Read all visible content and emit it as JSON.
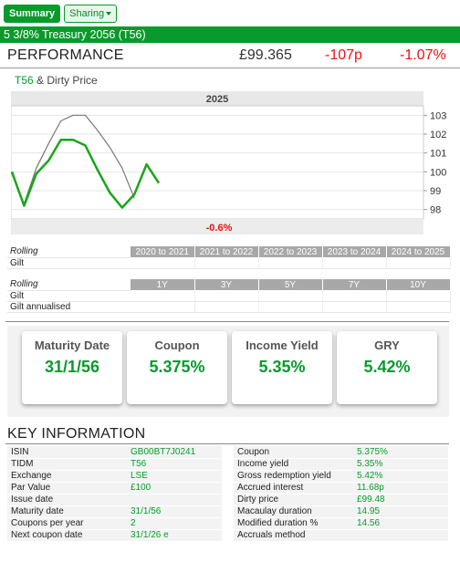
{
  "tabs": {
    "summary": "Summary",
    "sharing": "Sharing"
  },
  "title": "5 3/8% Treasury 2056 (T56)",
  "performance": {
    "label": "PERFORMANCE",
    "price": "£99.365",
    "change": "-107p",
    "change_pct": "-1.07%"
  },
  "chart_title": {
    "tidm": "T56",
    "rest": " & Dirty Price"
  },
  "chart_data": {
    "type": "line",
    "title": "2025",
    "footer_label": "-0.6%",
    "y_ticks": [
      "103",
      "102",
      "101",
      "100",
      "99",
      "98"
    ],
    "ylim": [
      97.5,
      103.5
    ],
    "grid": true,
    "series": [
      {
        "name": "T56",
        "color": "#1aa51a",
        "values": [
          100.0,
          98.2,
          99.9,
          100.6,
          101.7,
          101.7,
          101.4,
          100.1,
          98.9,
          98.1,
          98.8,
          100.4,
          99.4
        ]
      },
      {
        "name": "Dirty Price",
        "color": "#777777",
        "values": [
          100.0,
          98.3,
          100.2,
          101.5,
          102.7,
          103.0,
          103.0,
          102.2,
          101.3,
          100.2,
          98.6,
          null,
          null
        ]
      }
    ]
  },
  "rolling1": {
    "label": "Rolling",
    "headers": [
      "2020 to 2021",
      "2021 to 2022",
      "2022 to 2023",
      "2023 to 2024",
      "2024 to 2025"
    ],
    "rows": [
      {
        "label": "Gilt"
      }
    ]
  },
  "rolling2": {
    "label": "Rolling",
    "headers": [
      "1Y",
      "3Y",
      "5Y",
      "7Y",
      "10Y"
    ],
    "rows": [
      {
        "label": "Gilt"
      },
      {
        "label": "Gilt annualised"
      }
    ]
  },
  "cards": [
    {
      "label": "Maturity Date",
      "value": "31/1/56"
    },
    {
      "label": "Coupon",
      "value": "5.375%"
    },
    {
      "label": "Income Yield",
      "value": "5.35%"
    },
    {
      "label": "GRY",
      "value": "5.42%"
    }
  ],
  "key_info": {
    "title": "KEY INFORMATION",
    "left": [
      {
        "k": "ISIN",
        "v": "GB00BT7J0241"
      },
      {
        "k": "TIDM",
        "v": "T56"
      },
      {
        "k": "Exchange",
        "v": "LSE"
      },
      {
        "k": "Par Value",
        "v": "£100"
      },
      {
        "k": "Issue date",
        "v": ""
      },
      {
        "k": "Maturity date",
        "v": "31/1/56"
      },
      {
        "k": "Coupons per year",
        "v": "2"
      },
      {
        "k": "Next coupon date",
        "v": "31/1/26 e"
      }
    ],
    "right": [
      {
        "k": "Coupon",
        "v": "5.375%"
      },
      {
        "k": "Income yield",
        "v": "5.35%"
      },
      {
        "k": "Gross redemption yield",
        "v": "5.42%"
      },
      {
        "k": "Accrued interest",
        "v": "11.68p"
      },
      {
        "k": "Dirty price",
        "v": "£99.48"
      },
      {
        "k": "Macaulay duration",
        "v": "14.95"
      },
      {
        "k": "Modified duration %",
        "v": "14.56"
      },
      {
        "k": "Accruals method",
        "v": ""
      }
    ]
  }
}
